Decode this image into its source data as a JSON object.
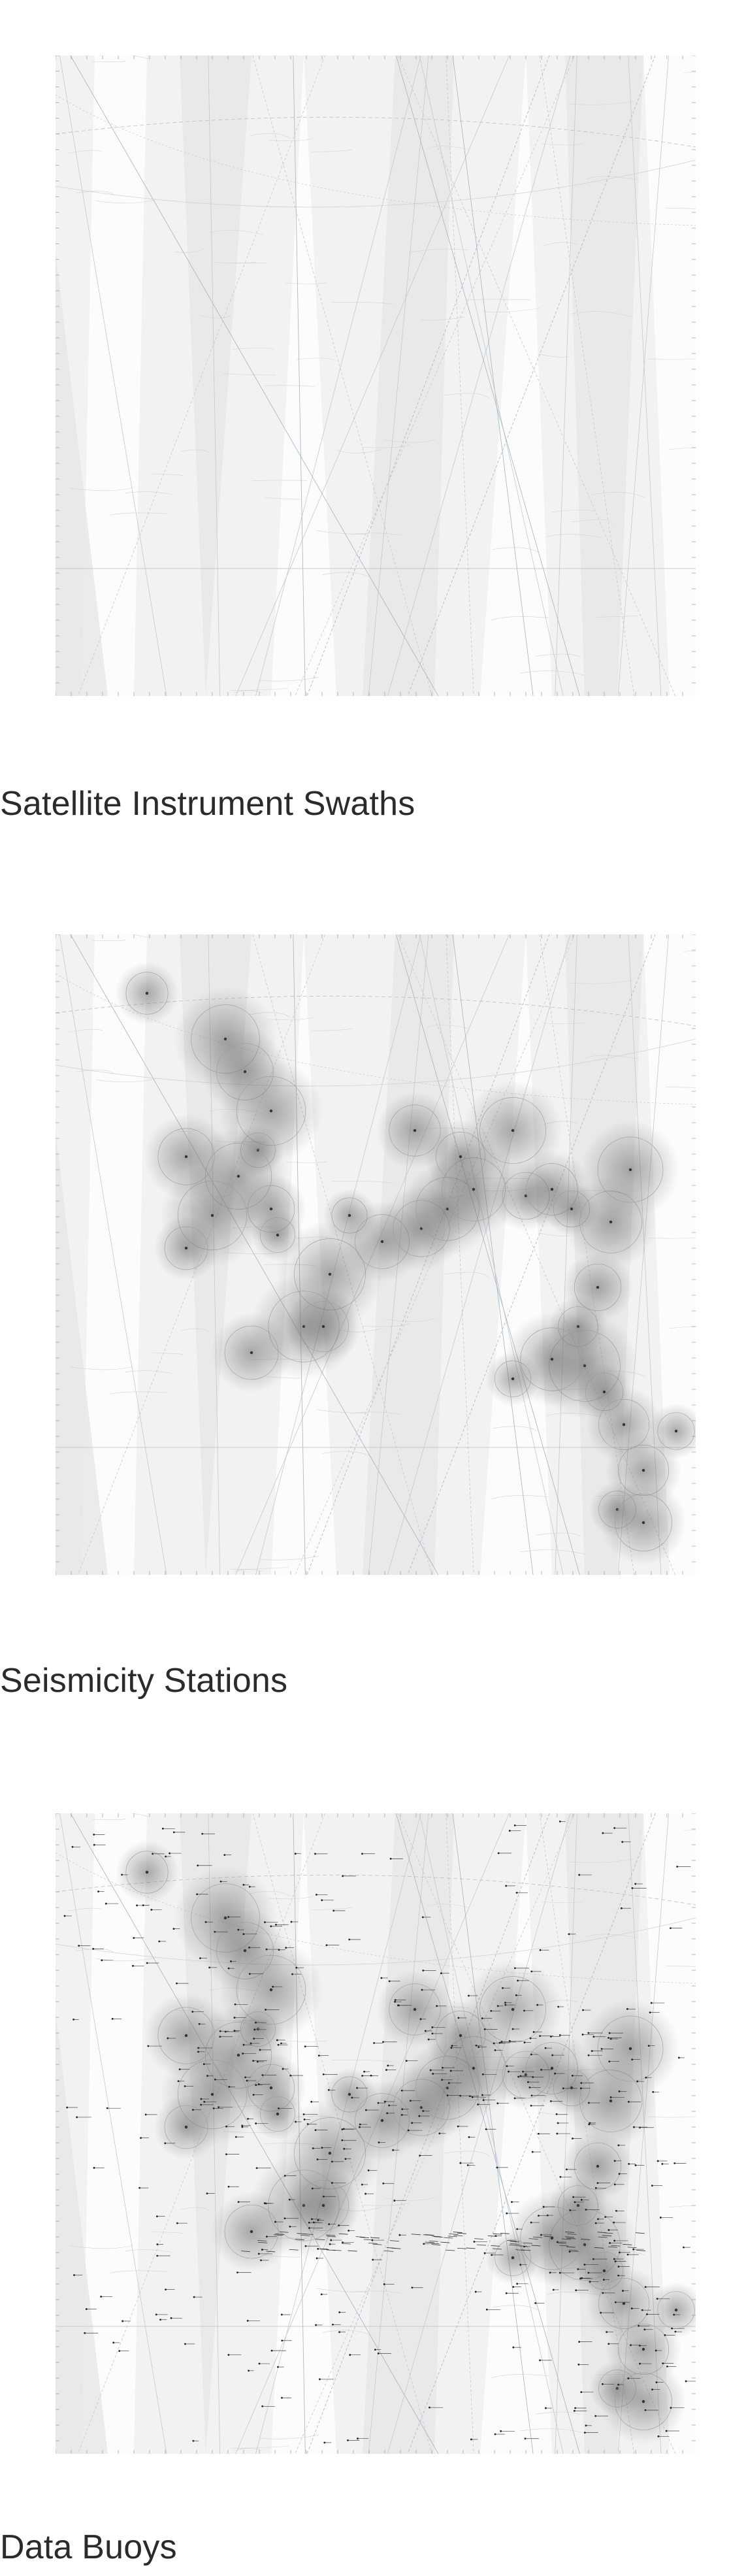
{
  "figures": [
    {
      "id": "swaths",
      "caption": "Satellite Instrument Swaths"
    },
    {
      "id": "seismic",
      "caption": "Seismicity Stations"
    },
    {
      "id": "buoys",
      "caption": "Data Buoys"
    }
  ]
}
